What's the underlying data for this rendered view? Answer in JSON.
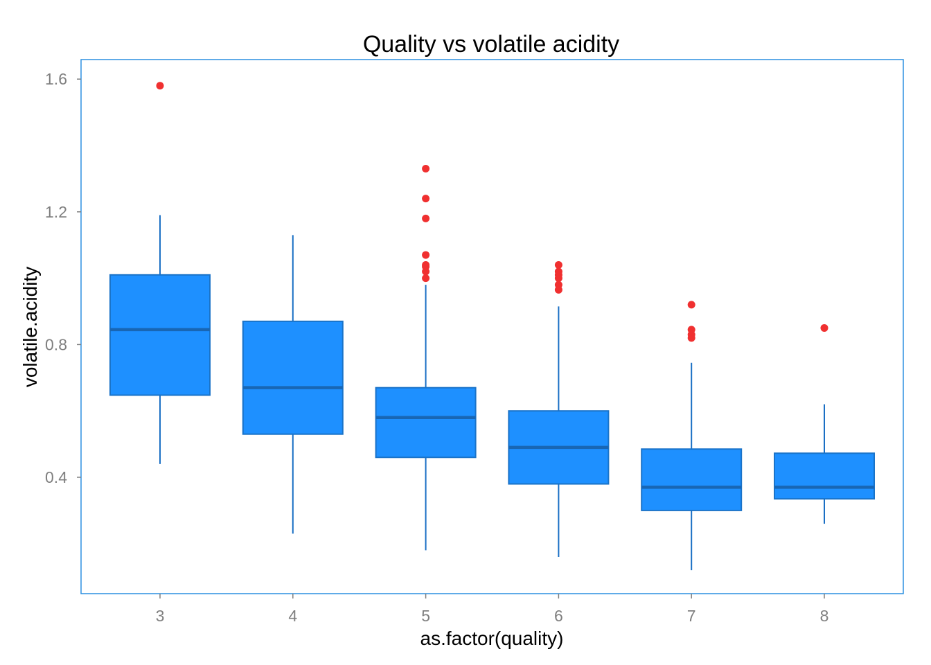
{
  "chart_data": {
    "type": "boxplot",
    "title": "Quality vs volatile acidity",
    "xlabel": "as.factor(quality)",
    "ylabel": "volatile.acidity",
    "categories": [
      "3",
      "4",
      "5",
      "6",
      "7",
      "8"
    ],
    "yticks": [
      0.4,
      0.8,
      1.2,
      1.6
    ],
    "ytick_labels": [
      "0.4",
      "0.8",
      "1.2",
      "1.6"
    ],
    "ylim": [
      0.08,
      1.64
    ],
    "grid": false,
    "boxes": [
      {
        "category": "3",
        "whisker_low": 0.44,
        "q1": 0.6475,
        "median": 0.845,
        "q3": 1.01,
        "whisker_high": 1.19,
        "outliers": [
          1.58
        ]
      },
      {
        "category": "4",
        "whisker_low": 0.23,
        "q1": 0.53,
        "median": 0.67,
        "q3": 0.87,
        "whisker_high": 1.13,
        "outliers": []
      },
      {
        "category": "5",
        "whisker_low": 0.18,
        "q1": 0.46,
        "median": 0.58,
        "q3": 0.67,
        "whisker_high": 0.98,
        "outliers": [
          1.0,
          1.02,
          1.035,
          1.04,
          1.07,
          1.18,
          1.24,
          1.33
        ]
      },
      {
        "category": "6",
        "whisker_low": 0.16,
        "q1": 0.38,
        "median": 0.49,
        "q3": 0.6,
        "whisker_high": 0.915,
        "outliers": [
          0.965,
          0.98,
          1.0,
          1.01,
          1.02,
          1.04
        ]
      },
      {
        "category": "7",
        "whisker_low": 0.12,
        "q1": 0.3,
        "median": 0.37,
        "q3": 0.485,
        "whisker_high": 0.745,
        "outliers": [
          0.82,
          0.83,
          0.845,
          0.92
        ]
      },
      {
        "category": "8",
        "whisker_low": 0.26,
        "q1": 0.335,
        "median": 0.37,
        "q3": 0.4725,
        "whisker_high": 0.62,
        "outliers": [
          0.85
        ]
      }
    ],
    "colors": {
      "box_fill": "#1e90ff",
      "box_stroke": "#1a73c8",
      "median": "#1866b4",
      "whisker": "#1a6fc4",
      "outlier": "#f03030",
      "panel_border": "#2b8fe0",
      "tick": "#7f7f7f"
    }
  }
}
